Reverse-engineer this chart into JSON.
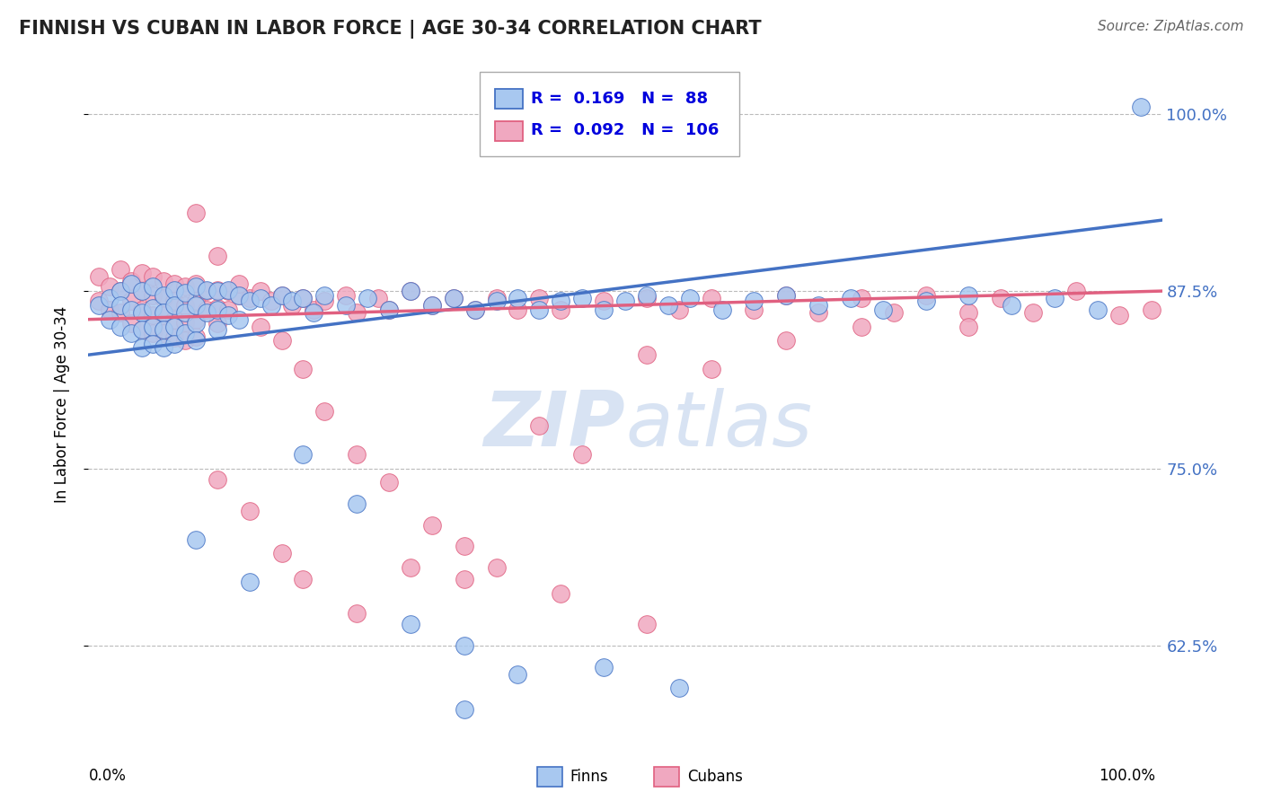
{
  "title": "FINNISH VS CUBAN IN LABOR FORCE | AGE 30-34 CORRELATION CHART",
  "source": "Source: ZipAtlas.com",
  "ylabel": "In Labor Force | Age 30-34",
  "xlim": [
    0.0,
    1.0
  ],
  "ylim": [
    0.555,
    1.035
  ],
  "yticks": [
    0.625,
    0.75,
    0.875,
    1.0
  ],
  "ytick_labels": [
    "62.5%",
    "75.0%",
    "87.5%",
    "100.0%"
  ],
  "legend_r_finn": "0.169",
  "legend_n_finn": "88",
  "legend_r_cuban": "0.092",
  "legend_n_cuban": "106",
  "finn_color": "#a8c8f0",
  "cuban_color": "#f0a8c0",
  "finn_line_color": "#4472c4",
  "cuban_line_color": "#e06080",
  "watermark_color": "#c8d8ee",
  "finn_trendline": [
    0.0,
    0.83,
    1.0,
    0.925
  ],
  "cuban_trendline": [
    0.0,
    0.855,
    1.0,
    0.875
  ],
  "finn_x": [
    0.01,
    0.02,
    0.02,
    0.03,
    0.03,
    0.03,
    0.04,
    0.04,
    0.04,
    0.05,
    0.05,
    0.05,
    0.05,
    0.06,
    0.06,
    0.06,
    0.06,
    0.07,
    0.07,
    0.07,
    0.07,
    0.08,
    0.08,
    0.08,
    0.08,
    0.09,
    0.09,
    0.09,
    0.1,
    0.1,
    0.1,
    0.1,
    0.11,
    0.11,
    0.12,
    0.12,
    0.12,
    0.13,
    0.13,
    0.14,
    0.14,
    0.15,
    0.16,
    0.17,
    0.18,
    0.19,
    0.2,
    0.21,
    0.22,
    0.24,
    0.26,
    0.28,
    0.3,
    0.32,
    0.34,
    0.36,
    0.38,
    0.4,
    0.42,
    0.44,
    0.46,
    0.48,
    0.5,
    0.52,
    0.54,
    0.56,
    0.59,
    0.62,
    0.65,
    0.68,
    0.71,
    0.74,
    0.78,
    0.82,
    0.86,
    0.9,
    0.94,
    0.98,
    0.2,
    0.25,
    0.1,
    0.15,
    0.35,
    0.4,
    0.48,
    0.55,
    0.3,
    0.35
  ],
  "finn_y": [
    0.865,
    0.87,
    0.855,
    0.875,
    0.865,
    0.85,
    0.88,
    0.862,
    0.845,
    0.875,
    0.86,
    0.848,
    0.835,
    0.878,
    0.863,
    0.85,
    0.838,
    0.872,
    0.86,
    0.848,
    0.835,
    0.876,
    0.865,
    0.85,
    0.838,
    0.874,
    0.86,
    0.845,
    0.878,
    0.865,
    0.852,
    0.84,
    0.876,
    0.86,
    0.875,
    0.862,
    0.848,
    0.876,
    0.858,
    0.872,
    0.855,
    0.868,
    0.87,
    0.865,
    0.872,
    0.868,
    0.87,
    0.86,
    0.872,
    0.865,
    0.87,
    0.862,
    0.875,
    0.865,
    0.87,
    0.862,
    0.868,
    0.87,
    0.862,
    0.868,
    0.87,
    0.862,
    0.868,
    0.872,
    0.865,
    0.87,
    0.862,
    0.868,
    0.872,
    0.865,
    0.87,
    0.862,
    0.868,
    0.872,
    0.865,
    0.87,
    0.862,
    1.005,
    0.76,
    0.725,
    0.7,
    0.67,
    0.625,
    0.605,
    0.61,
    0.595,
    0.64,
    0.58
  ],
  "cuban_x": [
    0.01,
    0.01,
    0.02,
    0.02,
    0.03,
    0.03,
    0.03,
    0.04,
    0.04,
    0.04,
    0.05,
    0.05,
    0.05,
    0.05,
    0.06,
    0.06,
    0.06,
    0.06,
    0.07,
    0.07,
    0.07,
    0.07,
    0.08,
    0.08,
    0.08,
    0.08,
    0.09,
    0.09,
    0.09,
    0.09,
    0.1,
    0.1,
    0.1,
    0.1,
    0.11,
    0.11,
    0.12,
    0.12,
    0.12,
    0.13,
    0.13,
    0.14,
    0.15,
    0.16,
    0.17,
    0.18,
    0.19,
    0.2,
    0.21,
    0.22,
    0.24,
    0.25,
    0.27,
    0.28,
    0.3,
    0.32,
    0.34,
    0.36,
    0.38,
    0.4,
    0.42,
    0.44,
    0.48,
    0.52,
    0.55,
    0.58,
    0.62,
    0.65,
    0.68,
    0.72,
    0.75,
    0.78,
    0.82,
    0.85,
    0.88,
    0.92,
    0.96,
    0.99,
    0.1,
    0.12,
    0.14,
    0.16,
    0.18,
    0.2,
    0.22,
    0.25,
    0.28,
    0.32,
    0.35,
    0.38,
    0.42,
    0.46,
    0.52,
    0.58,
    0.65,
    0.72,
    0.82,
    0.52,
    0.44,
    0.35,
    0.3,
    0.25,
    0.2,
    0.18,
    0.15,
    0.12
  ],
  "cuban_y": [
    0.885,
    0.868,
    0.878,
    0.862,
    0.89,
    0.875,
    0.86,
    0.882,
    0.868,
    0.852,
    0.888,
    0.875,
    0.862,
    0.848,
    0.885,
    0.872,
    0.858,
    0.845,
    0.882,
    0.87,
    0.858,
    0.845,
    0.88,
    0.868,
    0.855,
    0.842,
    0.878,
    0.865,
    0.853,
    0.84,
    0.88,
    0.868,
    0.855,
    0.843,
    0.875,
    0.862,
    0.876,
    0.863,
    0.852,
    0.875,
    0.862,
    0.872,
    0.87,
    0.875,
    0.868,
    0.872,
    0.865,
    0.87,
    0.862,
    0.868,
    0.872,
    0.86,
    0.87,
    0.862,
    0.875,
    0.865,
    0.87,
    0.862,
    0.87,
    0.862,
    0.87,
    0.862,
    0.868,
    0.87,
    0.862,
    0.87,
    0.862,
    0.872,
    0.86,
    0.87,
    0.86,
    0.872,
    0.86,
    0.87,
    0.86,
    0.875,
    0.858,
    0.862,
    0.93,
    0.9,
    0.88,
    0.85,
    0.84,
    0.82,
    0.79,
    0.76,
    0.74,
    0.71,
    0.695,
    0.68,
    0.78,
    0.76,
    0.83,
    0.82,
    0.84,
    0.85,
    0.85,
    0.64,
    0.662,
    0.672,
    0.68,
    0.648,
    0.672,
    0.69,
    0.72,
    0.742
  ]
}
